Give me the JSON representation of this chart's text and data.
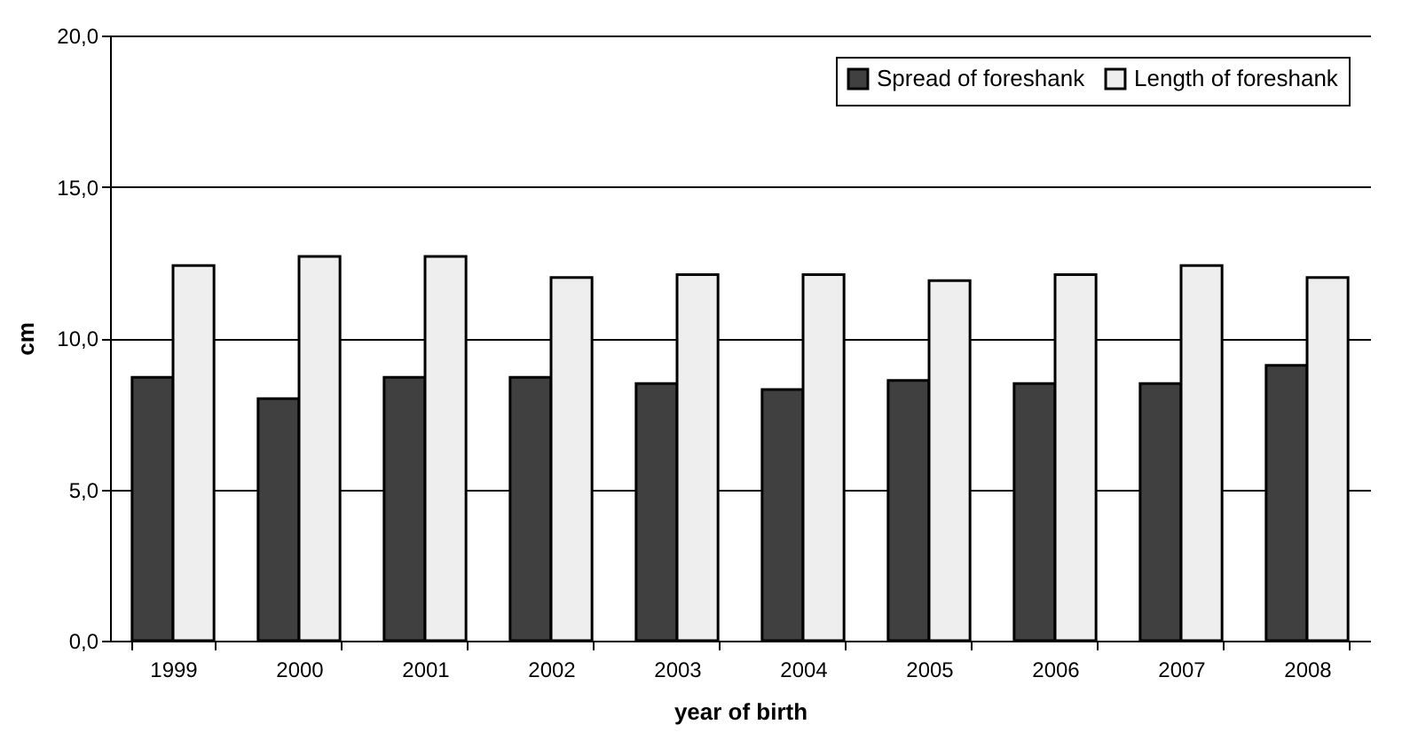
{
  "chart_data": {
    "type": "bar",
    "xlabel": "year of birth",
    "ylabel": "cm",
    "categories": [
      "1999",
      "2000",
      "2001",
      "2002",
      "2003",
      "2004",
      "2005",
      "2006",
      "2007",
      "2008"
    ],
    "series": [
      {
        "name": "Spread of foreshank",
        "color": "#404040",
        "values": [
          8.7,
          8.0,
          8.7,
          8.7,
          8.5,
          8.3,
          8.6,
          8.5,
          8.5,
          9.1
        ]
      },
      {
        "name": "Length of foreshank",
        "color": "#eeeeee",
        "values": [
          12.4,
          12.7,
          12.7,
          12.0,
          12.1,
          12.1,
          11.9,
          12.1,
          12.4,
          12.0
        ]
      }
    ],
    "ylim": [
      0,
      20
    ],
    "yticks": [
      {
        "value": 0,
        "label": "0,0"
      },
      {
        "value": 5,
        "label": "5,0"
      },
      {
        "value": 10,
        "label": "10,0"
      },
      {
        "value": 15,
        "label": "15,0"
      },
      {
        "value": 20,
        "label": "20,0"
      }
    ],
    "grid": "y",
    "legend": "top right"
  }
}
